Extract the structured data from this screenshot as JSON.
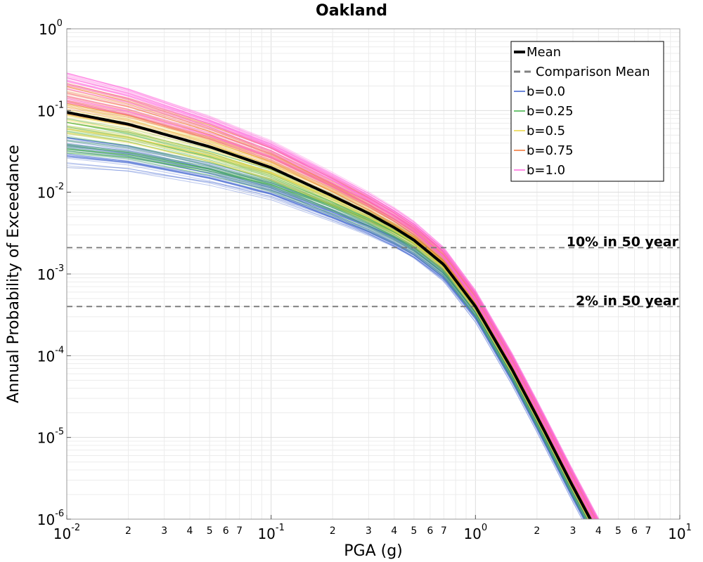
{
  "chart_data": {
    "type": "line",
    "title": "Oakland",
    "xlabel": "PGA (g)",
    "ylabel": "Annual Probability of Exceedance",
    "xscale": "log",
    "yscale": "log",
    "xlim": [
      0.01,
      10
    ],
    "ylim": [
      1e-06,
      1
    ],
    "grid": true,
    "legend_position": "top-right",
    "x_major_ticks": [
      {
        "base": "10",
        "exp": "-2",
        "value": 0.01
      },
      {
        "base": "10",
        "exp": "-1",
        "value": 0.1
      },
      {
        "base": "10",
        "exp": "0",
        "value": 1
      },
      {
        "base": "10",
        "exp": "1",
        "value": 10
      }
    ],
    "x_minor_tick_labels": [
      "2",
      "3",
      "4",
      "5",
      "6",
      "7"
    ],
    "y_major_ticks": [
      {
        "base": "10",
        "exp": "0",
        "value": 1
      },
      {
        "base": "10",
        "exp": "-1",
        "value": 0.1
      },
      {
        "base": "10",
        "exp": "-2",
        "value": 0.01
      },
      {
        "base": "10",
        "exp": "-3",
        "value": 0.001
      },
      {
        "base": "10",
        "exp": "-4",
        "value": 0.0001
      },
      {
        "base": "10",
        "exp": "-5",
        "value": 1e-05
      },
      {
        "base": "10",
        "exp": "-6",
        "value": 1e-06
      }
    ],
    "mean": {
      "name": "Mean",
      "color": "#000000",
      "x": [
        0.01,
        0.02,
        0.05,
        0.1,
        0.2,
        0.3,
        0.4,
        0.5,
        0.7,
        1.0,
        1.5,
        2.0,
        3.0,
        4.0
      ],
      "y": [
        0.095,
        0.068,
        0.036,
        0.02,
        0.009,
        0.0055,
        0.0037,
        0.0026,
        0.0013,
        0.0004,
        7e-05,
        1.8e-05,
        2.5e-06,
        6.5e-07
      ]
    },
    "comparison_mean": {
      "name": "Comparison Mean",
      "color": "#808080"
    },
    "series": [
      {
        "name": "b=0.0",
        "color": "#3a5fcd",
        "y_at_0_01": [
          0.02,
          0.05
        ],
        "y_at_1": [
          0.00025,
          0.00045
        ]
      },
      {
        "name": "b=0.25",
        "color": "#3cb043",
        "y_at_0_01": [
          0.03,
          0.08
        ],
        "y_at_1": [
          0.0003,
          0.0005
        ]
      },
      {
        "name": "b=0.5",
        "color": "#e8d440",
        "y_at_0_01": [
          0.05,
          0.12
        ],
        "y_at_1": [
          0.00035,
          0.00055
        ]
      },
      {
        "name": "b=0.75",
        "color": "#f07030",
        "y_at_0_01": [
          0.09,
          0.22
        ],
        "y_at_1": [
          0.0004,
          0.0006
        ]
      },
      {
        "name": "b=1.0",
        "color": "#ff66dd",
        "y_at_0_01": [
          0.12,
          0.3
        ],
        "y_at_1": [
          0.00045,
          0.00065
        ]
      }
    ],
    "reference_lines": [
      {
        "label": "10% in 50 year",
        "y": 0.0021
      },
      {
        "label": "2% in 50 year",
        "y": 0.0004
      }
    ]
  }
}
